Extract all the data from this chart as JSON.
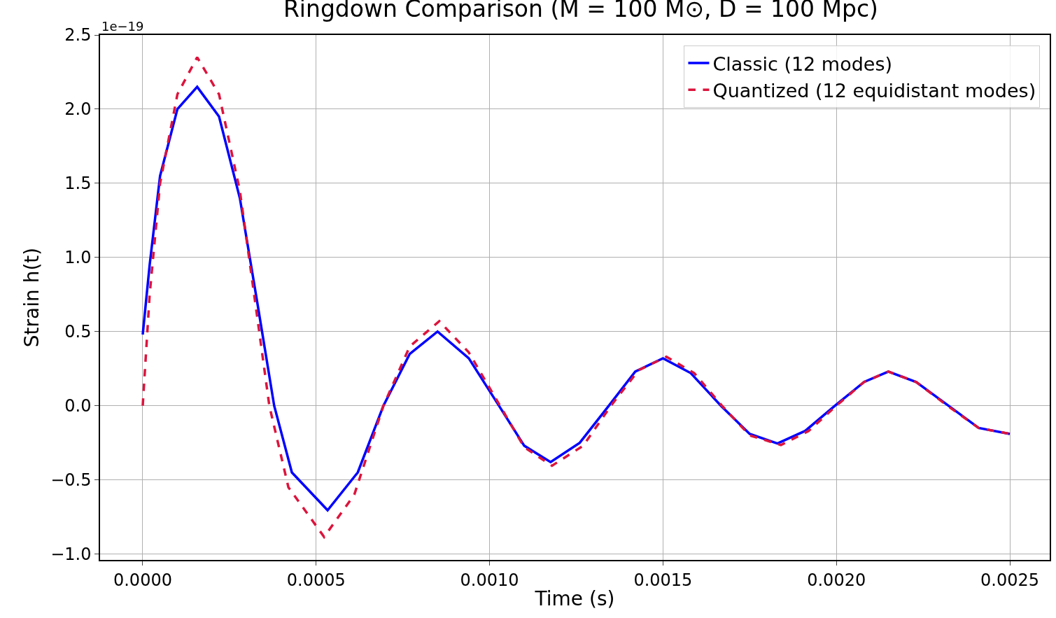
{
  "chart_data": {
    "type": "line",
    "title": "Ringdown Comparison (M = 100 M⊙, D = 100 Mpc)",
    "xlabel": "Time (s)",
    "ylabel": "Strain h(t)",
    "annotations": [
      "1e−19"
    ],
    "xlim": [
      -0.000123,
      0.002615
    ],
    "xticks": [
      {
        "value": 0,
        "label": "0.0000"
      },
      {
        "value": 0.0005,
        "label": "0.0005"
      },
      {
        "value": 0.001,
        "label": "0.0010"
      },
      {
        "value": 0.0015,
        "label": "0.0015"
      },
      {
        "value": 0.002,
        "label": "0.0020"
      },
      {
        "value": 0.0025,
        "label": "0.0025"
      }
    ],
    "ylim": [
      -1.04,
      2.5
    ],
    "yticks": [
      {
        "value": -1,
        "label": "−1.0"
      },
      {
        "value": -0.5,
        "label": "−0.5"
      },
      {
        "value": 0,
        "label": "0.0"
      },
      {
        "value": 0.5,
        "label": "0.5"
      },
      {
        "value": 1,
        "label": "1.0"
      },
      {
        "value": 1.5,
        "label": "1.5"
      },
      {
        "value": 2,
        "label": "2.0"
      },
      {
        "value": 2.5,
        "label": "2.5"
      }
    ],
    "grid": true,
    "legend": "top right",
    "marker": "none",
    "series": [
      {
        "name": "Classic (12 modes)",
        "color": "#0000ff",
        "line_style": "solid",
        "x": [
          0,
          2e-05,
          5e-05,
          0.0001,
          0.000157,
          0.00022,
          0.00028,
          0.00033,
          0.000379,
          0.00043,
          0.000533,
          0.00062,
          0.000694,
          0.00077,
          0.00085,
          0.00094,
          0.001027,
          0.0011,
          0.001176,
          0.00126,
          0.001344,
          0.00142,
          0.0015,
          0.00158,
          0.001667,
          0.00175,
          0.00183,
          0.00191,
          0.001996,
          0.00208,
          0.00215,
          0.00223,
          0.002323,
          0.00241,
          0.0025
        ],
        "values": [
          0.48,
          0.95,
          1.55,
          2.0,
          2.15,
          1.95,
          1.4,
          0.7,
          0,
          -0.45,
          -0.705,
          -0.45,
          0,
          0.35,
          0.5,
          0.32,
          0,
          -0.27,
          -0.38,
          -0.25,
          0,
          0.23,
          0.32,
          0.22,
          0,
          -0.19,
          -0.255,
          -0.17,
          0,
          0.16,
          0.23,
          0.16,
          0,
          -0.15,
          -0.19
        ]
      },
      {
        "name": "Quantized (12 equidistant modes)",
        "color": "#dc143c",
        "line_style": "dashed",
        "x": [
          0,
          2e-05,
          5e-05,
          0.0001,
          0.000157,
          0.00022,
          0.00028,
          0.00033,
          0.000365,
          0.00042,
          0.000523,
          0.00061,
          0.000694,
          0.00077,
          0.000855,
          0.00094,
          0.00103,
          0.0011,
          0.00118,
          0.00127,
          0.00135,
          0.00143,
          0.00151,
          0.00159,
          0.00167,
          0.00175,
          0.00184,
          0.00192,
          0.002,
          0.00208,
          0.00215,
          0.00223,
          0.00232,
          0.00241,
          0.0025
        ],
        "values": [
          0,
          0.75,
          1.5,
          2.1,
          2.35,
          2.1,
          1.45,
          0.6,
          0,
          -0.55,
          -0.885,
          -0.6,
          0,
          0.4,
          0.57,
          0.36,
          0,
          -0.28,
          -0.405,
          -0.27,
          0,
          0.24,
          0.33,
          0.22,
          0,
          -0.2,
          -0.265,
          -0.17,
          0,
          0.16,
          0.23,
          0.16,
          0,
          -0.15,
          -0.19
        ]
      }
    ]
  }
}
